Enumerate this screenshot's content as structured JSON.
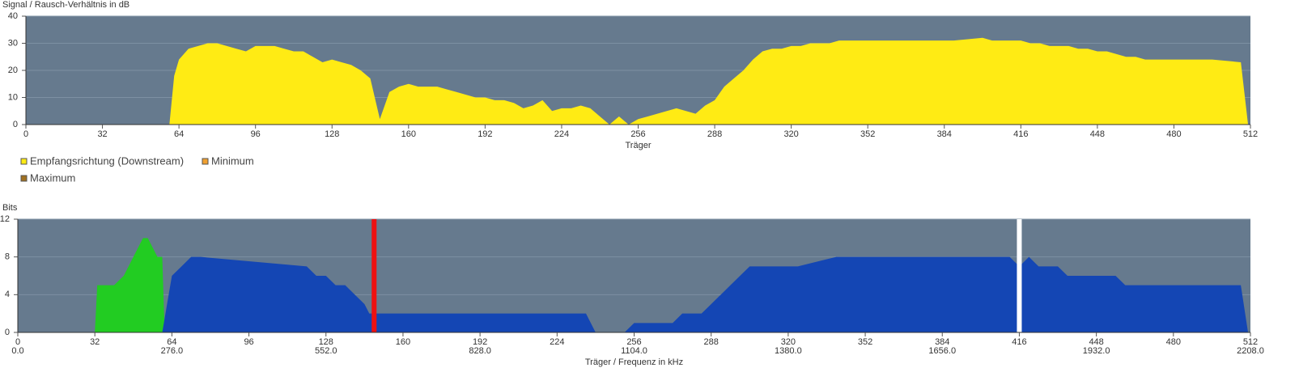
{
  "chart_data": [
    {
      "type": "area",
      "ylabel": "Signal / Rausch-Verhältnis in dB",
      "xlabel": "Träger",
      "xlim": [
        0,
        512
      ],
      "xticks": [
        0,
        32,
        64,
        96,
        128,
        160,
        192,
        224,
        256,
        288,
        320,
        352,
        384,
        416,
        448,
        480,
        512
      ],
      "ylim": [
        0,
        40
      ],
      "yticks": [
        0,
        10,
        20,
        30,
        40
      ],
      "grid": true,
      "background": "#667a8e",
      "series": [
        {
          "name": "Empfangsrichtung (Downstream)",
          "color": "#ffeb14",
          "x": [
            0,
            60,
            62,
            64,
            68,
            72,
            76,
            80,
            84,
            88,
            92,
            96,
            100,
            104,
            108,
            112,
            116,
            120,
            124,
            128,
            132,
            136,
            140,
            144,
            148,
            152,
            156,
            160,
            164,
            168,
            172,
            176,
            180,
            184,
            188,
            192,
            196,
            200,
            204,
            208,
            212,
            216,
            220,
            224,
            228,
            232,
            236,
            240,
            244,
            248,
            252,
            256,
            260,
            264,
            268,
            272,
            276,
            280,
            284,
            288,
            292,
            296,
            300,
            304,
            308,
            312,
            316,
            320,
            324,
            328,
            332,
            336,
            340,
            352,
            364,
            376,
            388,
            400,
            404,
            416,
            420,
            424,
            428,
            432,
            436,
            440,
            444,
            448,
            452,
            456,
            460,
            464,
            468,
            480,
            496,
            508,
            511
          ],
          "values": [
            0,
            0,
            18,
            24,
            28,
            29,
            30,
            30,
            29,
            28,
            27,
            29,
            29,
            29,
            28,
            27,
            27,
            25,
            23,
            24,
            23,
            22,
            20,
            17,
            2,
            12,
            14,
            15,
            14,
            14,
            14,
            13,
            12,
            11,
            10,
            10,
            9,
            9,
            8,
            6,
            7,
            9,
            5,
            6,
            6,
            7,
            6,
            3,
            0,
            3,
            0,
            2,
            3,
            4,
            5,
            6,
            5,
            4,
            7,
            9,
            14,
            17,
            20,
            24,
            27,
            28,
            28,
            29,
            29,
            30,
            30,
            30,
            31,
            31,
            31,
            31,
            31,
            32,
            31,
            31,
            30,
            30,
            29,
            29,
            29,
            28,
            28,
            27,
            27,
            26,
            25,
            25,
            24,
            24,
            24,
            23,
            0
          ]
        },
        {
          "name": "Minimum",
          "color": "#f0a030"
        },
        {
          "name": "Maximum",
          "color": "#a07020"
        }
      ]
    },
    {
      "type": "area",
      "ylabel": "Bits",
      "xlabel": "Träger / Frequenz in kHz",
      "xlim": [
        0,
        512
      ],
      "xticks": [
        0,
        32,
        64,
        96,
        128,
        160,
        192,
        224,
        256,
        288,
        320,
        352,
        384,
        416,
        448,
        480,
        512
      ],
      "x2lim": [
        0,
        2208
      ],
      "x2ticks": [
        {
          "value": 0,
          "label": "0.0"
        },
        {
          "value": 276,
          "label": "276.0"
        },
        {
          "value": 552,
          "label": "552.0"
        },
        {
          "value": 828,
          "label": "828.0"
        },
        {
          "value": 1104,
          "label": "1104.0"
        },
        {
          "value": 1380,
          "label": "1380.0"
        },
        {
          "value": 1656,
          "label": "1656.0"
        },
        {
          "value": 1932,
          "label": "1932.0"
        },
        {
          "value": 2208,
          "label": "2208.0"
        }
      ],
      "ylim": [
        0,
        12
      ],
      "yticks": [
        0,
        4,
        8,
        12
      ],
      "grid": true,
      "background": "#667a8e",
      "markers": [
        {
          "x": 148,
          "color": "#ee1111"
        },
        {
          "x": 416,
          "color": "#ffffff"
        }
      ],
      "series": [
        {
          "color": "#22cc22",
          "x": [
            32,
            33,
            36,
            40,
            44,
            48,
            50,
            52,
            54,
            56,
            58,
            60,
            61
          ],
          "values": [
            0,
            5,
            5,
            5,
            6,
            8,
            9,
            10,
            10,
            9,
            8,
            8,
            0
          ]
        },
        {
          "color": "#1446b4",
          "x": [
            60,
            62,
            64,
            68,
            72,
            76,
            120,
            124,
            128,
            132,
            136,
            140,
            144,
            146,
            236,
            238,
            240,
            252,
            256,
            272,
            276,
            284,
            288,
            292,
            296,
            300,
            304,
            324,
            340,
            412,
            416,
            420,
            424,
            432,
            436,
            456,
            460,
            508,
            511
          ],
          "values": [
            0,
            3,
            6,
            7,
            8,
            8,
            7,
            6,
            6,
            5,
            5,
            4,
            3,
            2,
            2,
            1,
            0,
            0,
            1,
            1,
            2,
            2,
            3,
            4,
            5,
            6,
            7,
            7,
            8,
            8,
            7,
            8,
            7,
            7,
            6,
            6,
            5,
            5,
            0
          ]
        }
      ]
    }
  ]
}
